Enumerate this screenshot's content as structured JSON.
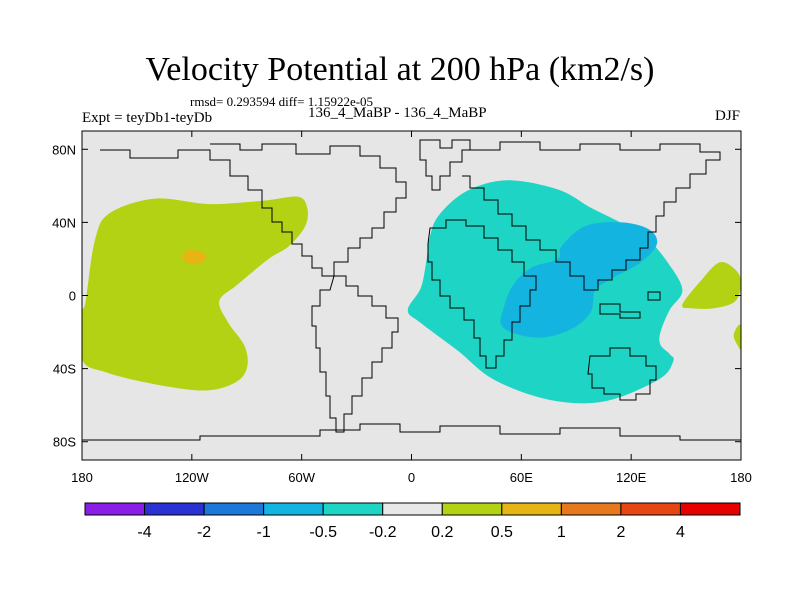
{
  "header": {
    "title": "Velocity Potential at 200 hPa (km2/s)",
    "stats": "rmsd= 0.293594 diff= 1.15922e-05",
    "experiment": "Expt = teyDb1-teyDb",
    "runs": "136_4_MaBP - 136_4_MaBP",
    "season": "DJF"
  },
  "chart_data": {
    "type": "heatmap",
    "title": "Velocity Potential at 200 hPa (km2/s)",
    "units": "km2/s",
    "x_range": [
      -180,
      180
    ],
    "y_range": [
      -90,
      90
    ],
    "x_ticks": [
      {
        "value": -180,
        "label": "180"
      },
      {
        "value": -120,
        "label": "120W"
      },
      {
        "value": -60,
        "label": "60W"
      },
      {
        "value": 0,
        "label": "0"
      },
      {
        "value": 60,
        "label": "60E"
      },
      {
        "value": 120,
        "label": "120E"
      },
      {
        "value": 180,
        "label": "180"
      }
    ],
    "y_ticks": [
      {
        "value": 80,
        "label": "80N"
      },
      {
        "value": 40,
        "label": "40N"
      },
      {
        "value": 0,
        "label": "0"
      },
      {
        "value": -40,
        "label": "40S"
      },
      {
        "value": -80,
        "label": "80S"
      }
    ],
    "background_color": "#e6e6e6",
    "contour_levels": [
      -4,
      -2,
      -1,
      -0.5,
      -0.2,
      0.2,
      0.5,
      1,
      2,
      4
    ],
    "colorbar_labels": [
      "-4",
      "-2",
      "-1",
      "-0.5",
      "-0.2",
      "0.2",
      "0.5",
      "1",
      "2",
      "4"
    ],
    "colorbar_colors": [
      "#8a1ee6",
      "#2a32d4",
      "#1e78d8",
      "#14b4e0",
      "#1ed4c4",
      "#e8e8e8",
      "#b4d214",
      "#e6b414",
      "#e6781e",
      "#e64614",
      "#e60000"
    ],
    "regions": [
      {
        "name": "positive-west-pacific-americas",
        "level": "0.2 to 0.5",
        "color": "#b4d214",
        "outline": [
          [
            -180,
            -10
          ],
          [
            -178,
            -3
          ],
          [
            -173,
            30
          ],
          [
            -165,
            45
          ],
          [
            -140,
            53
          ],
          [
            -110,
            50
          ],
          [
            -80,
            52
          ],
          [
            -62,
            54
          ],
          [
            -57,
            48
          ],
          [
            -58,
            38
          ],
          [
            -67,
            27
          ],
          [
            -78,
            20
          ],
          [
            -95,
            6
          ],
          [
            -105,
            -3
          ],
          [
            -100,
            -15
          ],
          [
            -91,
            -28
          ],
          [
            -90,
            -40
          ],
          [
            -97,
            -48
          ],
          [
            -114,
            -52
          ],
          [
            -143,
            -48
          ],
          [
            -167,
            -42
          ],
          [
            -180,
            -35
          ]
        ]
      },
      {
        "name": "positive-core-east-pacific",
        "level": "0.5 to 1",
        "color": "#e6b414",
        "outline": [
          [
            -125,
            22
          ],
          [
            -121,
            25
          ],
          [
            -113,
            23
          ],
          [
            -113,
            19
          ],
          [
            -119,
            17
          ],
          [
            -124,
            19
          ]
        ]
      },
      {
        "name": "negative-africa-asia-indian-ocean",
        "level": "-0.5 to -0.2",
        "color": "#1ed4c4",
        "outline": [
          [
            10,
            32
          ],
          [
            15,
            44
          ],
          [
            30,
            57
          ],
          [
            52,
            63
          ],
          [
            80,
            58
          ],
          [
            98,
            48
          ],
          [
            114,
            40
          ],
          [
            128,
            32
          ],
          [
            140,
            18
          ],
          [
            148,
            3
          ],
          [
            141,
            -8
          ],
          [
            136,
            -20
          ],
          [
            136,
            -27
          ],
          [
            141,
            -32
          ],
          [
            143,
            -36
          ],
          [
            135,
            -46
          ],
          [
            105,
            -58
          ],
          [
            75,
            -57
          ],
          [
            45,
            -46
          ],
          [
            25,
            -30
          ],
          [
            5,
            -15
          ],
          [
            -2,
            -8
          ],
          [
            5,
            4
          ],
          [
            8,
            18
          ]
        ]
      },
      {
        "name": "negative-core-maritime",
        "level": "-1 to -0.5",
        "color": "#14b4e0",
        "outline": [
          [
            50,
            -8
          ],
          [
            55,
            5
          ],
          [
            65,
            15
          ],
          [
            80,
            20
          ],
          [
            82,
            27
          ],
          [
            95,
            38
          ],
          [
            115,
            40
          ],
          [
            130,
            36
          ],
          [
            134,
            28
          ],
          [
            125,
            18
          ],
          [
            107,
            8
          ],
          [
            100,
            2
          ],
          [
            98,
            -9
          ],
          [
            88,
            -18
          ],
          [
            72,
            -23
          ],
          [
            57,
            -21
          ],
          [
            49,
            -16
          ]
        ]
      },
      {
        "name": "positive-pacific-small",
        "level": "0.2 to 0.5",
        "color": "#b4d214",
        "outline": [
          [
            148,
            -5
          ],
          [
            158,
            8
          ],
          [
            168,
            18
          ],
          [
            176,
            15
          ],
          [
            180,
            8
          ],
          [
            177,
            -3
          ],
          [
            165,
            -7
          ],
          [
            153,
            -7
          ]
        ]
      },
      {
        "name": "positive-pacific-edge",
        "level": "0.2 to 0.5",
        "color": "#b4d214",
        "outline": [
          [
            178,
            -17
          ],
          [
            180,
            -17
          ],
          [
            180,
            -29
          ],
          [
            178,
            -27
          ],
          [
            176,
            -22
          ]
        ]
      }
    ]
  }
}
